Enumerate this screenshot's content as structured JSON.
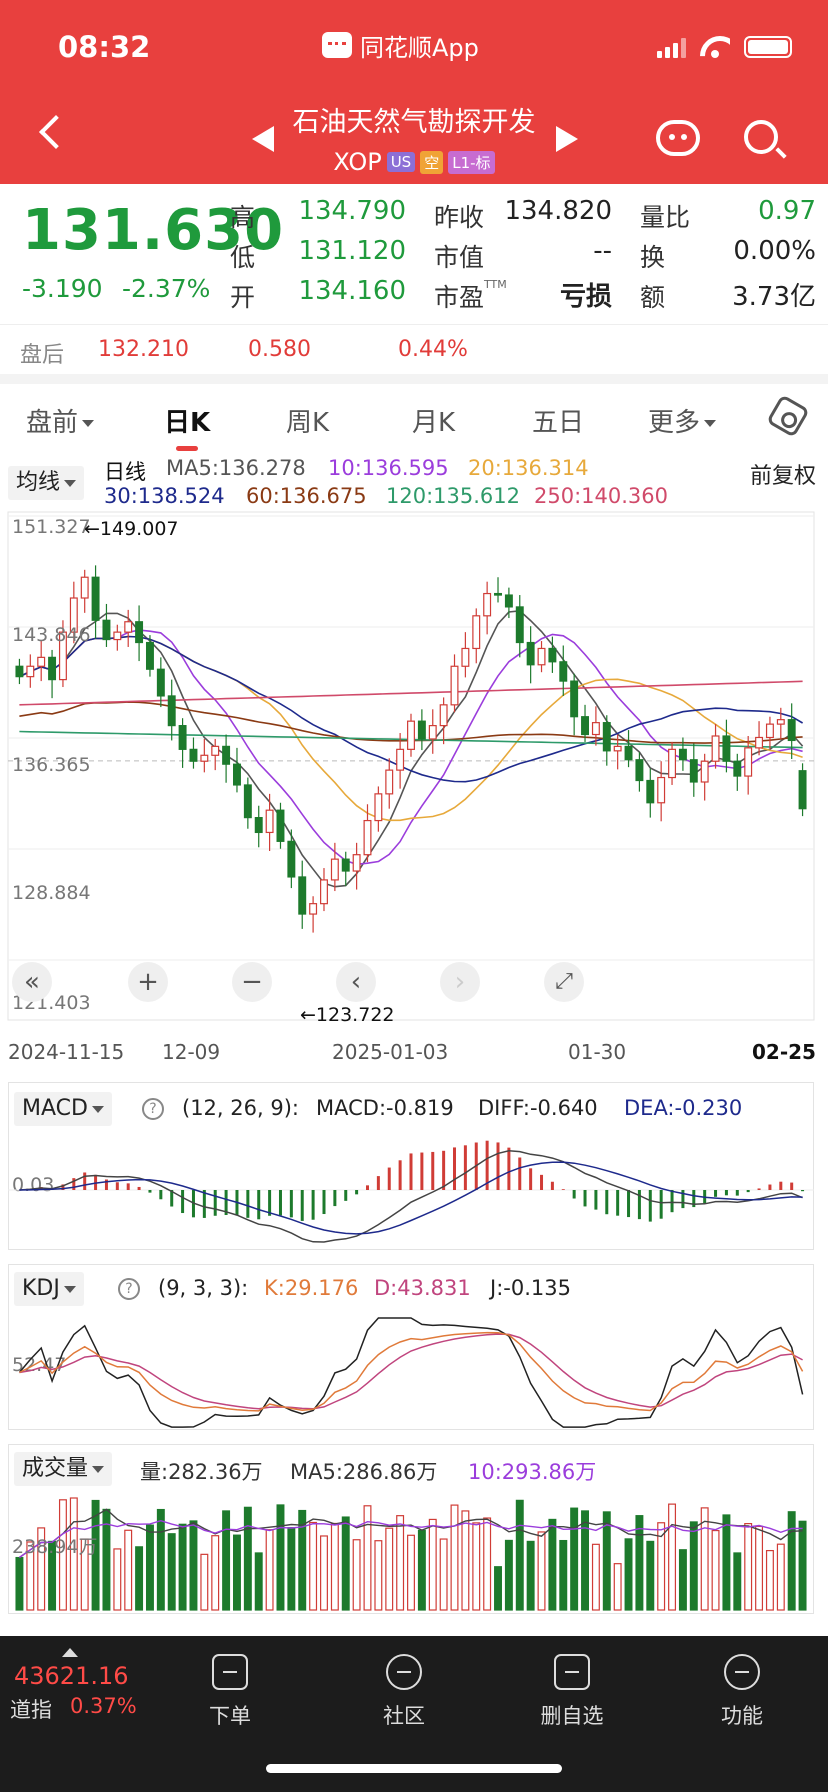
{
  "status_bar": {
    "time": "08:32",
    "app_name": "同花顺App"
  },
  "header": {
    "stock_name": "石油天然气勘探开发",
    "symbol": "XOP",
    "tags": [
      "US",
      "空",
      "L1-标"
    ]
  },
  "quote": {
    "price": "131.630",
    "change": "-3.190",
    "change_pct": "-2.37%",
    "high_label": "高",
    "high": "134.790",
    "low_label": "低",
    "low": "131.120",
    "open_label": "开",
    "open": "134.160",
    "prev_close_label": "昨收",
    "prev_close": "134.820",
    "market_cap_label": "市值",
    "market_cap": "--",
    "pe_label": "市盈",
    "pe_ttm_mark": "TTM",
    "pe": "亏损",
    "vol_ratio_label": "量比",
    "vol_ratio": "0.97",
    "turnover_label": "换",
    "turnover": "0.00%",
    "amount_label": "额",
    "amount": "3.73亿"
  },
  "after_hours": {
    "label": "盘后",
    "price": "132.210",
    "change": "0.580",
    "pct": "0.44%"
  },
  "tabs": [
    "盘前",
    "日K",
    "周K",
    "月K",
    "五日",
    "更多"
  ],
  "active_tab": "日K",
  "chart_header": {
    "ma_select": "均线",
    "period": "日线",
    "ma5": "MA5:136.278",
    "ma10": "10:136.595",
    "ma20": "20:136.314",
    "ma30": "30:138.524",
    "ma60": "60:136.675",
    "ma120": "120:135.612",
    "ma250": "250:140.360",
    "adjust": "前复权"
  },
  "colors": {
    "ma5": "#555555",
    "ma10": "#9b3ddc",
    "ma20": "#e7a93b",
    "ma30": "#1e2a8c",
    "ma60": "#8a3a14",
    "ma120": "#2e9a6a",
    "ma250": "#d04a6a",
    "up": "#d03c36",
    "down": "#1d7a2c"
  },
  "chart_data": {
    "type": "candlestick",
    "y_ticks": [
      "151.327",
      "143.846",
      "136.365",
      "128.884",
      "121.403"
    ],
    "ylim": [
      121.403,
      151.327
    ],
    "x_ticks": [
      "2024-11-15",
      "12-09",
      "2025-01-03",
      "01-30",
      "02-25"
    ],
    "max_annotation": "←149.007",
    "min_annotation": "←123.722",
    "ref_line": 134.82,
    "closes": [
      140.5,
      141.2,
      141.8,
      140.3,
      143.5,
      145.8,
      147.2,
      144.3,
      143.0,
      143.5,
      144.2,
      142.8,
      141.0,
      139.2,
      137.2,
      135.6,
      134.8,
      135.2,
      135.8,
      134.6,
      133.2,
      131.0,
      130.0,
      131.5,
      129.4,
      127.0,
      124.5,
      125.2,
      126.8,
      128.2,
      127.4,
      128.5,
      130.8,
      132.6,
      134.2,
      135.6,
      137.5,
      136.3,
      137.2,
      138.6,
      141.2,
      142.4,
      144.6,
      146.1,
      146.0,
      145.2,
      142.8,
      141.3,
      142.4,
      141.5,
      140.2,
      137.8,
      136.6,
      137.4,
      135.5,
      135.8,
      134.9,
      133.5,
      132.0,
      133.7,
      135.6,
      134.9,
      133.4,
      134.8,
      136.5,
      134.8,
      133.8,
      135.7,
      136.4,
      137.3,
      137.6,
      136.2,
      131.6
    ],
    "opens": [
      141.2,
      140.5,
      141.2,
      141.8,
      140.3,
      143.5,
      145.8,
      147.2,
      144.3,
      143.0,
      143.5,
      144.2,
      142.8,
      141.0,
      139.2,
      137.2,
      135.6,
      134.8,
      135.2,
      135.8,
      134.6,
      133.2,
      131.0,
      130.0,
      131.5,
      129.4,
      127.0,
      124.5,
      125.2,
      126.8,
      128.2,
      127.4,
      128.5,
      130.8,
      132.6,
      134.2,
      135.6,
      137.5,
      136.3,
      137.2,
      138.6,
      141.2,
      142.4,
      144.6,
      146.1,
      146.0,
      145.2,
      142.8,
      141.3,
      142.4,
      141.5,
      140.2,
      137.8,
      136.6,
      137.4,
      135.5,
      135.8,
      134.9,
      133.5,
      132.0,
      133.7,
      135.6,
      134.9,
      133.4,
      134.8,
      136.5,
      134.8,
      133.8,
      135.7,
      136.4,
      137.3,
      137.6,
      134.16
    ],
    "macd": {
      "label": "MACD",
      "params": "(12, 26, 9):",
      "macd": "MACD:-0.819",
      "diff": "DIFF:-0.640",
      "dea": "DEA:-0.230",
      "y_tick": "0.03"
    },
    "kdj": {
      "label": "KDJ",
      "params": "(9, 3, 3):",
      "k": "K:29.176",
      "d": "D:43.831",
      "j": "J:-0.135",
      "y_tick": "52.47"
    },
    "volume": {
      "label": "成交量",
      "vol": "量:282.36万",
      "ma5": "MA5:286.86万",
      "ma10": "10:293.86万",
      "y_tick": "238.94万"
    }
  },
  "bottom_bar": {
    "index_value": "43621.16",
    "index_name": "道指",
    "index_pct": "0.37%",
    "nav": [
      "下单",
      "社区",
      "删自选",
      "功能"
    ]
  }
}
